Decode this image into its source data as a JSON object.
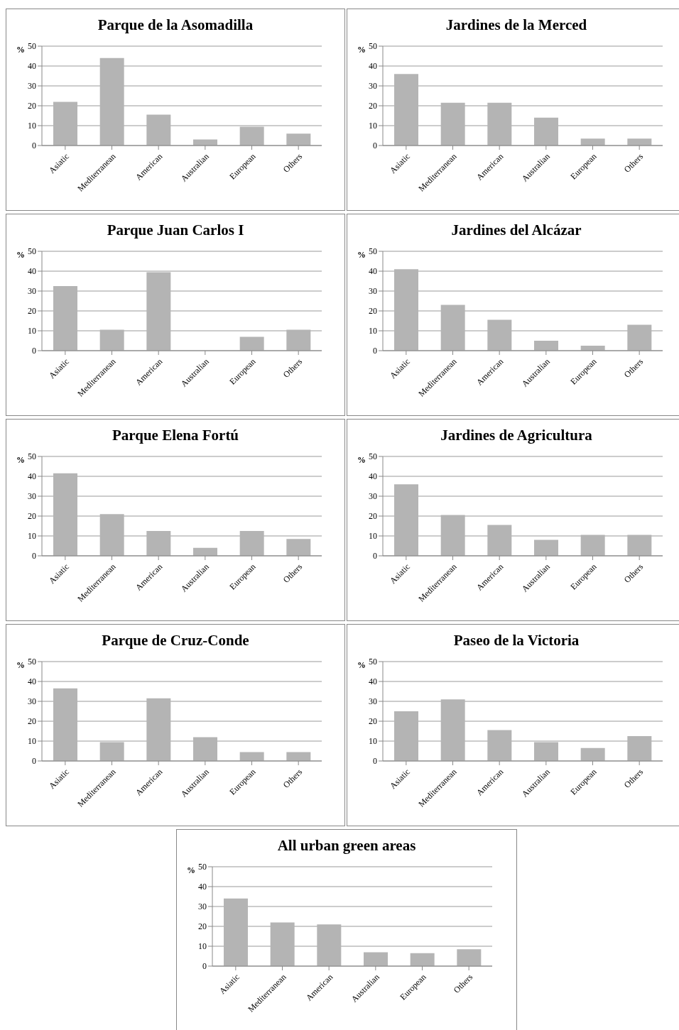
{
  "chart_data": [
    {
      "type": "bar",
      "title": "Parque de la Asomadilla",
      "ylabel": "%",
      "categories": [
        "Asiatic",
        "Mediterranean",
        "American",
        "Australian",
        "European",
        "Others"
      ],
      "values": [
        22,
        44,
        15.5,
        3,
        9.5,
        6
      ],
      "color": "#b4b4b4",
      "ylim": [
        0,
        50
      ],
      "yticks": [
        0,
        10,
        20,
        30,
        40,
        50
      ],
      "grid": "y"
    },
    {
      "type": "bar",
      "title": "Jardines de la Merced",
      "ylabel": "%",
      "categories": [
        "Asiatic",
        "Mediterranean",
        "American",
        "Australian",
        "European",
        "Others"
      ],
      "values": [
        36,
        21.5,
        21.5,
        14,
        3.5,
        3.5
      ],
      "color": "#b4b4b4",
      "ylim": [
        0,
        50
      ],
      "yticks": [
        0,
        10,
        20,
        30,
        40,
        50
      ],
      "grid": "y"
    },
    {
      "type": "bar",
      "title": "Parque Juan Carlos I",
      "ylabel": "%",
      "categories": [
        "Asiatic",
        "Mediterranean",
        "American",
        "Australian",
        "European",
        "Others"
      ],
      "values": [
        32.5,
        10.5,
        39.5,
        0,
        7,
        10.5
      ],
      "color": "#b4b4b4",
      "ylim": [
        0,
        50
      ],
      "yticks": [
        0,
        10,
        20,
        30,
        40,
        50
      ],
      "grid": "y"
    },
    {
      "type": "bar",
      "title": "Jardines del Alcázar",
      "ylabel": "%",
      "categories": [
        "Asiatic",
        "Mediterranean",
        "American",
        "Australian",
        "European",
        "Others"
      ],
      "values": [
        41,
        23,
        15.5,
        5,
        2.5,
        13
      ],
      "color": "#b4b4b4",
      "ylim": [
        0,
        50
      ],
      "yticks": [
        0,
        10,
        20,
        30,
        40,
        50
      ],
      "grid": "y"
    },
    {
      "type": "bar",
      "title": "Parque Elena Fortú",
      "ylabel": "%",
      "categories": [
        "Asiatic",
        "Mediterranean",
        "American",
        "Australian",
        "European",
        "Others"
      ],
      "values": [
        41.5,
        21,
        12.5,
        4,
        12.5,
        8.5
      ],
      "color": "#b4b4b4",
      "ylim": [
        0,
        50
      ],
      "yticks": [
        0,
        10,
        20,
        30,
        40,
        50
      ],
      "grid": "y"
    },
    {
      "type": "bar",
      "title": "Jardines de Agricultura",
      "ylabel": "%",
      "categories": [
        "Asiatic",
        "Mediterranean",
        "American",
        "Australian",
        "European",
        "Others"
      ],
      "values": [
        36,
        20.5,
        15.5,
        8,
        10.5,
        10.5
      ],
      "color": "#b4b4b4",
      "ylim": [
        0,
        50
      ],
      "yticks": [
        0,
        10,
        20,
        30,
        40,
        50
      ],
      "grid": "y"
    },
    {
      "type": "bar",
      "title": "Parque de Cruz-Conde",
      "ylabel": "%",
      "categories": [
        "Asiatic",
        "Mediterranean",
        "American",
        "Australian",
        "European",
        "Others"
      ],
      "values": [
        36.5,
        9.5,
        31.5,
        12,
        4.5,
        4.5
      ],
      "color": "#b4b4b4",
      "ylim": [
        0,
        50
      ],
      "yticks": [
        0,
        10,
        20,
        30,
        40,
        50
      ],
      "grid": "y"
    },
    {
      "type": "bar",
      "title": "Paseo de la Victoria",
      "ylabel": "%",
      "categories": [
        "Asiatic",
        "Mediterranean",
        "American",
        "Australian",
        "European",
        "Others"
      ],
      "values": [
        25,
        31,
        15.5,
        9.5,
        6.5,
        12.5
      ],
      "color": "#b4b4b4",
      "ylim": [
        0,
        50
      ],
      "yticks": [
        0,
        10,
        20,
        30,
        40,
        50
      ],
      "grid": "y"
    },
    {
      "type": "bar",
      "title": "All urban green areas",
      "ylabel": "%",
      "categories": [
        "Asiatic",
        "Mediterranean",
        "American",
        "Australian",
        "European",
        "Others"
      ],
      "values": [
        34,
        22,
        21,
        7,
        6.5,
        8.5
      ],
      "color": "#b4b4b4",
      "ylim": [
        0,
        50
      ],
      "yticks": [
        0,
        10,
        20,
        30,
        40,
        50
      ],
      "grid": "y"
    }
  ]
}
